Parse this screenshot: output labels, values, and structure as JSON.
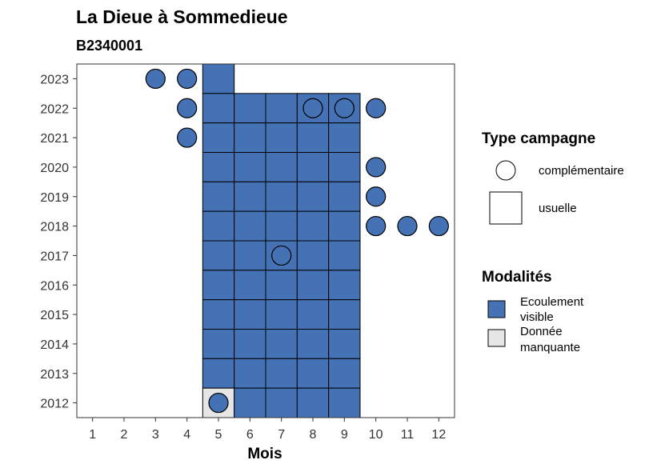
{
  "chart_data": {
    "type": "heatmap",
    "title": "La Dieue à Sommedieue",
    "subtitle": "B2340001",
    "xlabel": "Mois",
    "ylabel": "",
    "x_ticks": [
      "1",
      "2",
      "3",
      "4",
      "5",
      "6",
      "7",
      "8",
      "9",
      "10",
      "11",
      "12"
    ],
    "y_ticks": [
      "2012",
      "2013",
      "2014",
      "2015",
      "2016",
      "2017",
      "2018",
      "2019",
      "2020",
      "2021",
      "2022",
      "2023"
    ],
    "xlim": [
      0.5,
      12.5
    ],
    "ylim": [
      2011.5,
      2023.5
    ],
    "legend_campaign": {
      "title": "Type campagne",
      "items": [
        {
          "label": "complémentaire",
          "shape": "circle"
        },
        {
          "label": "usuelle",
          "shape": "square"
        }
      ]
    },
    "legend_modalities": {
      "title": "Modalités",
      "items": [
        {
          "label_lines": [
            "Ecoulement",
            "visible"
          ],
          "color": "#4472b4"
        },
        {
          "label_lines": [
            "Donnée",
            "manquante"
          ],
          "color": "#e6e6e6"
        }
      ]
    },
    "colors": {
      "Ecoulement visible": "#4472b4",
      "Donnée manquante": "#e6e6e6"
    },
    "points": [
      {
        "year": 2023,
        "month": 3,
        "campaign": "complémentaire",
        "modality": "Ecoulement visible"
      },
      {
        "year": 2023,
        "month": 4,
        "campaign": "complémentaire",
        "modality": "Ecoulement visible"
      },
      {
        "year": 2023,
        "month": 5,
        "campaign": "usuelle",
        "modality": "Ecoulement visible"
      },
      {
        "year": 2022,
        "month": 4,
        "campaign": "complémentaire",
        "modality": "Ecoulement visible"
      },
      {
        "year": 2022,
        "month": 5,
        "campaign": "usuelle",
        "modality": "Ecoulement visible"
      },
      {
        "year": 2022,
        "month": 6,
        "campaign": "usuelle",
        "modality": "Ecoulement visible"
      },
      {
        "year": 2022,
        "month": 7,
        "campaign": "usuelle",
        "modality": "Ecoulement visible"
      },
      {
        "year": 2022,
        "month": 8,
        "campaign": "usuelle",
        "modality": "Ecoulement visible"
      },
      {
        "year": 2022,
        "month": 8,
        "campaign": "complémentaire",
        "modality": "Ecoulement visible"
      },
      {
        "year": 2022,
        "month": 9,
        "campaign": "usuelle",
        "modality": "Ecoulement visible"
      },
      {
        "year": 2022,
        "month": 9,
        "campaign": "complémentaire",
        "modality": "Ecoulement visible"
      },
      {
        "year": 2022,
        "month": 10,
        "campaign": "complémentaire",
        "modality": "Ecoulement visible"
      },
      {
        "year": 2021,
        "month": 4,
        "campaign": "complémentaire",
        "modality": "Ecoulement visible"
      },
      {
        "year": 2021,
        "month": 5,
        "campaign": "usuelle",
        "modality": "Ecoulement visible"
      },
      {
        "year": 2021,
        "month": 6,
        "campaign": "usuelle",
        "modality": "Ecoulement visible"
      },
      {
        "year": 2021,
        "month": 7,
        "campaign": "usuelle",
        "modality": "Ecoulement visible"
      },
      {
        "year": 2021,
        "month": 8,
        "campaign": "usuelle",
        "modality": "Ecoulement visible"
      },
      {
        "year": 2021,
        "month": 9,
        "campaign": "usuelle",
        "modality": "Ecoulement visible"
      },
      {
        "year": 2020,
        "month": 5,
        "campaign": "usuelle",
        "modality": "Ecoulement visible"
      },
      {
        "year": 2020,
        "month": 6,
        "campaign": "usuelle",
        "modality": "Ecoulement visible"
      },
      {
        "year": 2020,
        "month": 7,
        "campaign": "usuelle",
        "modality": "Ecoulement visible"
      },
      {
        "year": 2020,
        "month": 8,
        "campaign": "usuelle",
        "modality": "Ecoulement visible"
      },
      {
        "year": 2020,
        "month": 9,
        "campaign": "usuelle",
        "modality": "Ecoulement visible"
      },
      {
        "year": 2020,
        "month": 10,
        "campaign": "complémentaire",
        "modality": "Ecoulement visible"
      },
      {
        "year": 2019,
        "month": 5,
        "campaign": "usuelle",
        "modality": "Ecoulement visible"
      },
      {
        "year": 2019,
        "month": 6,
        "campaign": "usuelle",
        "modality": "Ecoulement visible"
      },
      {
        "year": 2019,
        "month": 7,
        "campaign": "usuelle",
        "modality": "Ecoulement visible"
      },
      {
        "year": 2019,
        "month": 8,
        "campaign": "usuelle",
        "modality": "Ecoulement visible"
      },
      {
        "year": 2019,
        "month": 9,
        "campaign": "usuelle",
        "modality": "Ecoulement visible"
      },
      {
        "year": 2019,
        "month": 10,
        "campaign": "complémentaire",
        "modality": "Ecoulement visible"
      },
      {
        "year": 2018,
        "month": 5,
        "campaign": "usuelle",
        "modality": "Ecoulement visible"
      },
      {
        "year": 2018,
        "month": 6,
        "campaign": "usuelle",
        "modality": "Ecoulement visible"
      },
      {
        "year": 2018,
        "month": 7,
        "campaign": "usuelle",
        "modality": "Ecoulement visible"
      },
      {
        "year": 2018,
        "month": 8,
        "campaign": "usuelle",
        "modality": "Ecoulement visible"
      },
      {
        "year": 2018,
        "month": 9,
        "campaign": "usuelle",
        "modality": "Ecoulement visible"
      },
      {
        "year": 2018,
        "month": 10,
        "campaign": "complémentaire",
        "modality": "Ecoulement visible"
      },
      {
        "year": 2018,
        "month": 11,
        "campaign": "complémentaire",
        "modality": "Ecoulement visible"
      },
      {
        "year": 2018,
        "month": 12,
        "campaign": "complémentaire",
        "modality": "Ecoulement visible"
      },
      {
        "year": 2017,
        "month": 5,
        "campaign": "usuelle",
        "modality": "Ecoulement visible"
      },
      {
        "year": 2017,
        "month": 6,
        "campaign": "usuelle",
        "modality": "Ecoulement visible"
      },
      {
        "year": 2017,
        "month": 7,
        "campaign": "usuelle",
        "modality": "Ecoulement visible"
      },
      {
        "year": 2017,
        "month": 7,
        "campaign": "complémentaire",
        "modality": "Ecoulement visible"
      },
      {
        "year": 2017,
        "month": 8,
        "campaign": "usuelle",
        "modality": "Ecoulement visible"
      },
      {
        "year": 2017,
        "month": 9,
        "campaign": "usuelle",
        "modality": "Ecoulement visible"
      },
      {
        "year": 2016,
        "month": 5,
        "campaign": "usuelle",
        "modality": "Ecoulement visible"
      },
      {
        "year": 2016,
        "month": 6,
        "campaign": "usuelle",
        "modality": "Ecoulement visible"
      },
      {
        "year": 2016,
        "month": 7,
        "campaign": "usuelle",
        "modality": "Ecoulement visible"
      },
      {
        "year": 2016,
        "month": 8,
        "campaign": "usuelle",
        "modality": "Ecoulement visible"
      },
      {
        "year": 2016,
        "month": 9,
        "campaign": "usuelle",
        "modality": "Ecoulement visible"
      },
      {
        "year": 2015,
        "month": 5,
        "campaign": "usuelle",
        "modality": "Ecoulement visible"
      },
      {
        "year": 2015,
        "month": 6,
        "campaign": "usuelle",
        "modality": "Ecoulement visible"
      },
      {
        "year": 2015,
        "month": 7,
        "campaign": "usuelle",
        "modality": "Ecoulement visible"
      },
      {
        "year": 2015,
        "month": 8,
        "campaign": "usuelle",
        "modality": "Ecoulement visible"
      },
      {
        "year": 2015,
        "month": 9,
        "campaign": "usuelle",
        "modality": "Ecoulement visible"
      },
      {
        "year": 2014,
        "month": 5,
        "campaign": "usuelle",
        "modality": "Ecoulement visible"
      },
      {
        "year": 2014,
        "month": 6,
        "campaign": "usuelle",
        "modality": "Ecoulement visible"
      },
      {
        "year": 2014,
        "month": 7,
        "campaign": "usuelle",
        "modality": "Ecoulement visible"
      },
      {
        "year": 2014,
        "month": 8,
        "campaign": "usuelle",
        "modality": "Ecoulement visible"
      },
      {
        "year": 2014,
        "month": 9,
        "campaign": "usuelle",
        "modality": "Ecoulement visible"
      },
      {
        "year": 2013,
        "month": 5,
        "campaign": "usuelle",
        "modality": "Ecoulement visible"
      },
      {
        "year": 2013,
        "month": 6,
        "campaign": "usuelle",
        "modality": "Ecoulement visible"
      },
      {
        "year": 2013,
        "month": 7,
        "campaign": "usuelle",
        "modality": "Ecoulement visible"
      },
      {
        "year": 2013,
        "month": 8,
        "campaign": "usuelle",
        "modality": "Ecoulement visible"
      },
      {
        "year": 2013,
        "month": 9,
        "campaign": "usuelle",
        "modality": "Ecoulement visible"
      },
      {
        "year": 2012,
        "month": 5,
        "campaign": "usuelle",
        "modality": "Donnée manquante"
      },
      {
        "year": 2012,
        "month": 5,
        "campaign": "complémentaire",
        "modality": "Ecoulement visible"
      },
      {
        "year": 2012,
        "month": 6,
        "campaign": "usuelle",
        "modality": "Ecoulement visible"
      },
      {
        "year": 2012,
        "month": 7,
        "campaign": "usuelle",
        "modality": "Ecoulement visible"
      },
      {
        "year": 2012,
        "month": 8,
        "campaign": "usuelle",
        "modality": "Ecoulement visible"
      },
      {
        "year": 2012,
        "month": 9,
        "campaign": "usuelle",
        "modality": "Ecoulement visible"
      }
    ]
  }
}
